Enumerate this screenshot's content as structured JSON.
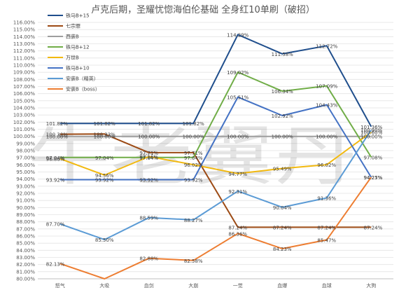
{
  "chart_data": {
    "type": "line",
    "title": "卢克后期，圣耀忧惚海伯伦基础 全身红10单刷（破招）",
    "categories": [
      "怒气",
      "大吸",
      "血剑",
      "大崩",
      "一觉",
      "血爆",
      "血球",
      "大狗"
    ],
    "ylim": [
      80.0,
      116.0
    ],
    "y_ticks": [
      "80.00%",
      "81.00%",
      "82.00%",
      "83.00%",
      "84.00%",
      "85.00%",
      "86.00%",
      "87.00%",
      "88.00%",
      "89.00%",
      "90.00%",
      "91.00%",
      "92.00%",
      "93.00%",
      "94.00%",
      "95.00%",
      "96.00%",
      "97.00%",
      "98.00%",
      "99.00%",
      "100.00%",
      "101.00%",
      "102.00%",
      "103.00%",
      "104.00%",
      "105.00%",
      "106.00%",
      "107.00%",
      "108.00%",
      "109.00%",
      "110.00%",
      "111.00%",
      "112.00%",
      "113.00%",
      "114.00%",
      "115.00%",
      "116.00%"
    ],
    "grid": true,
    "legend_position": "top-left-inside",
    "series": [
      {
        "name": "铁马B+15",
        "color": "#1f4e8c",
        "values": [
          101.82,
          101.82,
          101.82,
          101.82,
          114.29,
          111.58,
          112.72,
          101.36
        ],
        "labels": [
          "101.82%",
          "101.82%",
          "101.82%",
          "101.82%",
          "114.29%",
          "111.58%",
          "112.72%",
          "101.36%"
        ]
      },
      {
        "name": "七宗罪",
        "color": "#9c4a14",
        "values": [
          100.3,
          100.33,
          97.71,
          97.71,
          87.24,
          87.24,
          87.24,
          87.24
        ],
        "labels": [
          "100.30%",
          "100.33%",
          "97.71%",
          "97.71%",
          "87.24%",
          "87.24%",
          "87.24%",
          "87.24%"
        ]
      },
      {
        "name": "西装B",
        "color": "#9e9e9e",
        "values": [
          100.0,
          100.0,
          100.0,
          100.0,
          100.0,
          100.0,
          100.0,
          100.0
        ],
        "labels": [
          "100.00%",
          "100.00%",
          "100.00%",
          "100.00%",
          "100.00%",
          "100.00%",
          "100.00%",
          "100.00%"
        ]
      },
      {
        "name": "铁马B+12",
        "color": "#70ad47",
        "values": [
          97.04,
          97.04,
          97.04,
          97.04,
          109.02,
          106.34,
          107.09,
          97.08
        ],
        "labels": [
          "97.04%",
          "97.04%",
          "97.04%",
          "97.04%",
          "109.02%",
          "106.34%",
          "107.09%",
          "97.08%"
        ]
      },
      {
        "name": "万世B",
        "color": "#f2b90f",
        "values": [
          96.86,
          94.56,
          97.16,
          96.02,
          94.77,
          95.49,
          96.02,
          100.6
        ],
        "labels": [
          "96.86%",
          "94.56%",
          "97.16%",
          "96.02%",
          "94.77%",
          "95.49%",
          "96.02%",
          "100.60%"
        ]
      },
      {
        "name": "铁马B+10",
        "color": "#4472c4",
        "values": [
          93.92,
          93.92,
          93.92,
          93.92,
          105.51,
          102.92,
          104.43,
          94.25
        ],
        "labels": [
          "93.92%",
          "93.92%",
          "93.92%",
          "93.92%",
          "105.51%",
          "102.92%",
          "104.43%",
          "94.25%"
        ]
      },
      {
        "name": "安装B（精英）",
        "color": "#5b9bd5",
        "values": [
          87.7,
          85.5,
          88.59,
          88.27,
          92.31,
          90.04,
          91.36,
          100.9
        ],
        "labels": [
          "87.70%",
          "85.50%",
          "88.59%",
          "88.27%",
          "92.31%",
          "90.04%",
          "91.36%",
          "100.90%"
        ]
      },
      {
        "name": "安装B（boss）",
        "color": "#ed7d31",
        "values": [
          82.13,
          80.0,
          82.88,
          82.58,
          86.36,
          84.23,
          85.47,
          94.27
        ],
        "labels": [
          "82.13%",
          "",
          "82.88%",
          "82.58%",
          "86.36%",
          "84.23%",
          "85.47%",
          "94.27%"
        ]
      }
    ]
  },
  "watermark": "牛老翼丹"
}
